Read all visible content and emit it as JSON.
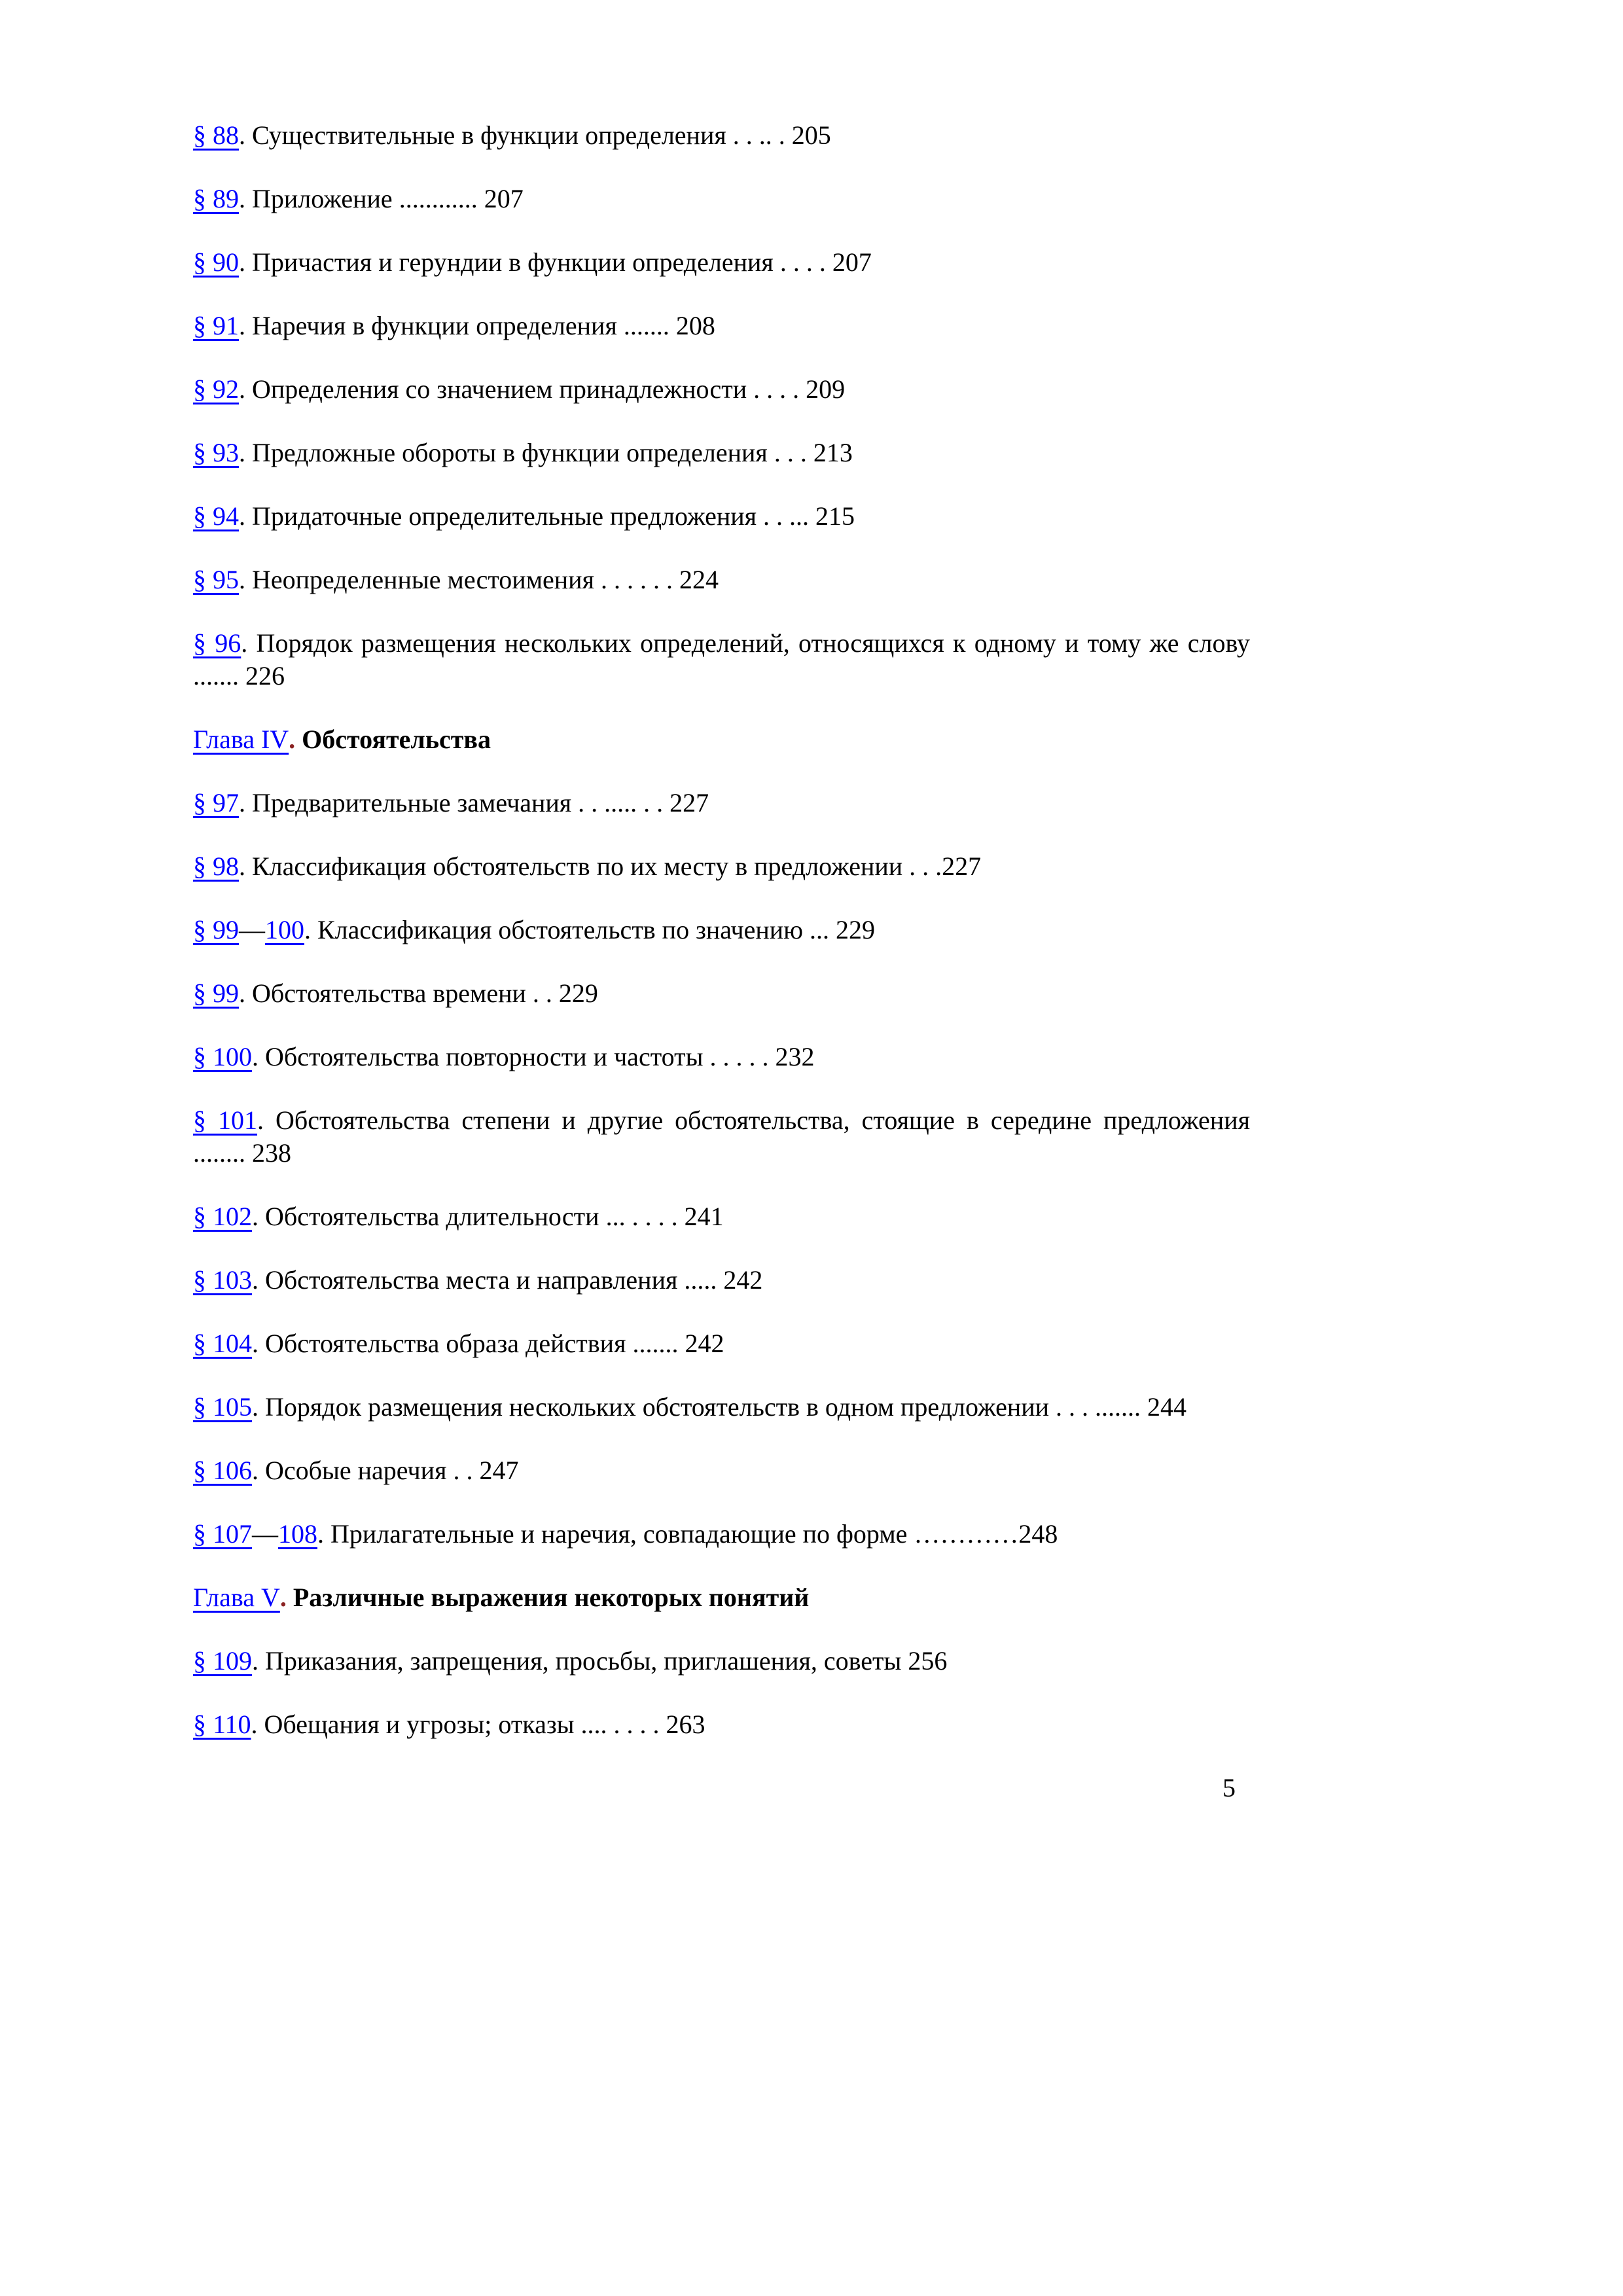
{
  "page": {
    "number": "5",
    "background": "#FFFFFF",
    "text_color": "#000000",
    "link_color": "#0000FF",
    "chapter_dot_color": "#8B2323"
  },
  "entries": [
    {
      "kind": "section",
      "ref": "§ 88",
      "text": ". Существительные в функции определения . . .. . 205"
    },
    {
      "kind": "section",
      "ref": "§ 89",
      "text": ". Приложение ............ 207"
    },
    {
      "kind": "section",
      "ref": "§ 90",
      "text": ". Причастия и герундии в функции определения . . . . 207"
    },
    {
      "kind": "section",
      "ref": "§ 91",
      "text": ". Наречия в функции определения ....... 208"
    },
    {
      "kind": "section",
      "ref": "§ 92",
      "text": ". Определения со значением принадлежности . . . . 209"
    },
    {
      "kind": "section",
      "ref": "§ 93",
      "text": ". Предложные обороты в функции определения . . . 213"
    },
    {
      "kind": "section",
      "ref": "§ 94",
      "text": ". Придаточные определительные предложения . . ... 215"
    },
    {
      "kind": "section",
      "ref": "§ 95",
      "text": ". Неопределенные местоимения . . . . . . 224"
    },
    {
      "kind": "section",
      "ref": "§ 96",
      "text": ". Порядок размещения нескольких определений, относящихся к одному и тому же слову ....... 226"
    },
    {
      "kind": "chapter",
      "ref": "Глава IV",
      "dot": ".",
      "title": "Обстоятельства"
    },
    {
      "kind": "section",
      "ref": "§ 97",
      "text": ". Предварительные замечания . . ..... . . 227"
    },
    {
      "kind": "section",
      "ref": "§ 98",
      "text": ". Классификация обстоятельств по их месту в предложении . . .227"
    },
    {
      "kind": "section",
      "ref": "§ 99",
      "sep": "—",
      "ref2": "100",
      "text": ". Классификация обстоятельств по значению ... 229"
    },
    {
      "kind": "section",
      "ref": "§ 99",
      "text": ". Обстоятельства времени . . 229"
    },
    {
      "kind": "section",
      "ref": "§ 100",
      "text": ". Обстоятельства повторности и частоты . . . . . 232"
    },
    {
      "kind": "section",
      "ref": "§ 101",
      "text": ". Обстоятельства степени и другие обстоятельства, стоящие в середине предложения ........ 238"
    },
    {
      "kind": "section",
      "ref": "§ 102",
      "text": ". Обстоятельства длительности ... . . . . 241"
    },
    {
      "kind": "section",
      "ref": "§ 103",
      "text": ". Обстоятельства места и направления ..... 242"
    },
    {
      "kind": "section",
      "ref": "§ 104",
      "text": ". Обстоятельства образа действия ....... 242"
    },
    {
      "kind": "section",
      "ref": "§ 105",
      "text": ". Порядок размещения нескольких обстоятельств в одном предложении . . . ....... 244"
    },
    {
      "kind": "section",
      "ref": "§ 106",
      "text": ". Особые наречия . . 247"
    },
    {
      "kind": "section",
      "ref": "§ 107",
      "sep": "—",
      "ref2": "108",
      "text": ". Прилагательные и наречия, совпадающие по форме …………248"
    },
    {
      "kind": "chapter",
      "ref": "Глава V",
      "dot": ".",
      "title": "Различные выражения некоторых понятий"
    },
    {
      "kind": "section",
      "ref": "§ 109",
      "text": ". Приказания, запрещения, просьбы, приглашения, советы 256"
    },
    {
      "kind": "section",
      "ref": "§ 110",
      "text": ". Обещания и угрозы; отказы .... . . . . 263"
    }
  ]
}
